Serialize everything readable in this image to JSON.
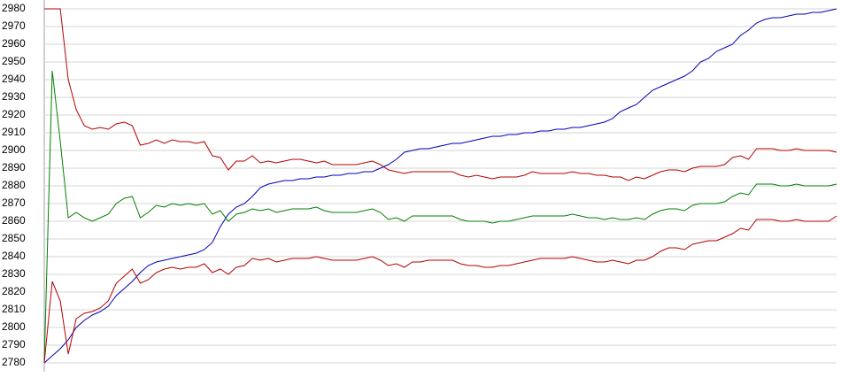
{
  "chart_data": {
    "type": "line",
    "x": [
      0,
      1,
      2,
      3,
      4,
      5,
      6,
      7,
      8,
      9,
      10,
      11,
      12,
      13,
      14,
      15,
      16,
      17,
      18,
      19,
      20,
      21,
      22,
      23,
      24,
      25,
      26,
      27,
      28,
      29,
      30,
      31,
      32,
      33,
      34,
      35,
      36,
      37,
      38,
      39,
      40,
      41,
      42,
      43,
      44,
      45,
      46,
      47,
      48,
      49,
      50,
      51,
      52,
      53,
      54,
      55,
      56,
      57,
      58,
      59,
      60,
      61,
      62,
      63,
      64,
      65,
      66,
      67,
      68,
      69,
      70,
      71,
      72,
      73,
      74,
      75,
      76,
      77,
      78,
      79,
      80,
      81,
      82,
      83,
      84,
      85,
      86,
      87,
      88,
      89,
      90,
      91,
      92,
      93,
      94,
      95,
      96,
      97,
      98,
      99
    ],
    "xlim": [
      0,
      99
    ],
    "ylim": [
      2780,
      2980
    ],
    "yticks": [
      2780,
      2790,
      2800,
      2810,
      2820,
      2830,
      2840,
      2850,
      2860,
      2870,
      2880,
      2890,
      2900,
      2910,
      2920,
      2930,
      2940,
      2950,
      2960,
      2970,
      2980
    ],
    "grid": true,
    "series": [
      {
        "color": "#0000b4",
        "values": [
          2780,
          2784,
          2788,
          2793,
          2800,
          2804,
          2807,
          2809,
          2812,
          2818,
          2822,
          2826,
          2831,
          2835,
          2837,
          2838,
          2839,
          2840,
          2841,
          2842,
          2844,
          2848,
          2857,
          2864,
          2868,
          2870,
          2874,
          2879,
          2881,
          2882,
          2883,
          2883,
          2884,
          2884,
          2885,
          2885,
          2886,
          2886,
          2887,
          2887,
          2888,
          2888,
          2890,
          2892,
          2895,
          2899,
          2900,
          2901,
          2901,
          2902,
          2903,
          2904,
          2904,
          2905,
          2906,
          2907,
          2908,
          2908,
          2909,
          2909,
          2910,
          2910,
          2911,
          2911,
          2912,
          2912,
          2913,
          2913,
          2914,
          2915,
          2916,
          2918,
          2922,
          2924,
          2926,
          2930,
          2934,
          2936,
          2938,
          2940,
          2942,
          2945,
          2950,
          2952,
          2956,
          2958,
          2960,
          2965,
          2968,
          2972,
          2974,
          2975,
          2975,
          2976,
          2977,
          2977,
          2978,
          2978,
          2979,
          2980
        ]
      },
      {
        "color": "#b40000",
        "values": [
          2980,
          2980,
          2980,
          2940,
          2923,
          2914,
          2912,
          2913,
          2912,
          2915,
          2916,
          2914,
          2903,
          2904,
          2906,
          2904,
          2906,
          2905,
          2905,
          2904,
          2905,
          2897,
          2896,
          2889,
          2894,
          2894,
          2897,
          2893,
          2894,
          2893,
          2894,
          2895,
          2895,
          2894,
          2893,
          2894,
          2892,
          2892,
          2892,
          2892,
          2893,
          2894,
          2892,
          2889,
          2888,
          2887,
          2888,
          2888,
          2888,
          2888,
          2888,
          2888,
          2886,
          2885,
          2886,
          2885,
          2884,
          2885,
          2885,
          2885,
          2886,
          2888,
          2887,
          2887,
          2887,
          2887,
          2888,
          2887,
          2887,
          2886,
          2886,
          2885,
          2885,
          2883,
          2885,
          2884,
          2886,
          2888,
          2889,
          2889,
          2888,
          2890,
          2891,
          2891,
          2891,
          2892,
          2896,
          2897,
          2895,
          2901,
          2901,
          2901,
          2900,
          2900,
          2901,
          2900,
          2900,
          2900,
          2900,
          2899
        ]
      },
      {
        "color": "#008000",
        "values": [
          2780,
          2945,
          2905,
          2862,
          2865,
          2862,
          2860,
          2862,
          2864,
          2870,
          2873,
          2874,
          2862,
          2865,
          2869,
          2868,
          2870,
          2869,
          2870,
          2869,
          2870,
          2864,
          2866,
          2860,
          2864,
          2865,
          2867,
          2866,
          2867,
          2865,
          2866,
          2867,
          2867,
          2867,
          2868,
          2866,
          2865,
          2865,
          2865,
          2865,
          2866,
          2867,
          2865,
          2861,
          2862,
          2860,
          2863,
          2863,
          2863,
          2863,
          2863,
          2863,
          2861,
          2860,
          2860,
          2860,
          2859,
          2860,
          2860,
          2861,
          2862,
          2863,
          2863,
          2863,
          2863,
          2863,
          2864,
          2863,
          2862,
          2862,
          2861,
          2862,
          2861,
          2861,
          2862,
          2861,
          2864,
          2866,
          2867,
          2867,
          2866,
          2869,
          2870,
          2870,
          2870,
          2871,
          2874,
          2876,
          2875,
          2881,
          2881,
          2881,
          2880,
          2880,
          2881,
          2880,
          2880,
          2880,
          2880,
          2881
        ]
      },
      {
        "color": "#b40000",
        "values": [
          2780,
          2826,
          2815,
          2785,
          2805,
          2808,
          2809,
          2811,
          2815,
          2825,
          2829,
          2833,
          2825,
          2827,
          2831,
          2833,
          2834,
          2833,
          2834,
          2834,
          2836,
          2831,
          2833,
          2830,
          2834,
          2835,
          2839,
          2838,
          2839,
          2837,
          2838,
          2839,
          2839,
          2839,
          2840,
          2839,
          2838,
          2838,
          2838,
          2838,
          2839,
          2840,
          2838,
          2835,
          2836,
          2834,
          2837,
          2837,
          2838,
          2838,
          2838,
          2838,
          2836,
          2835,
          2835,
          2834,
          2834,
          2835,
          2835,
          2836,
          2837,
          2838,
          2839,
          2839,
          2839,
          2839,
          2840,
          2839,
          2838,
          2837,
          2837,
          2838,
          2837,
          2836,
          2838,
          2838,
          2840,
          2843,
          2845,
          2845,
          2844,
          2847,
          2848,
          2849,
          2849,
          2851,
          2853,
          2856,
          2855,
          2861,
          2861,
          2861,
          2860,
          2860,
          2861,
          2860,
          2860,
          2860,
          2860,
          2863
        ]
      }
    ]
  }
}
